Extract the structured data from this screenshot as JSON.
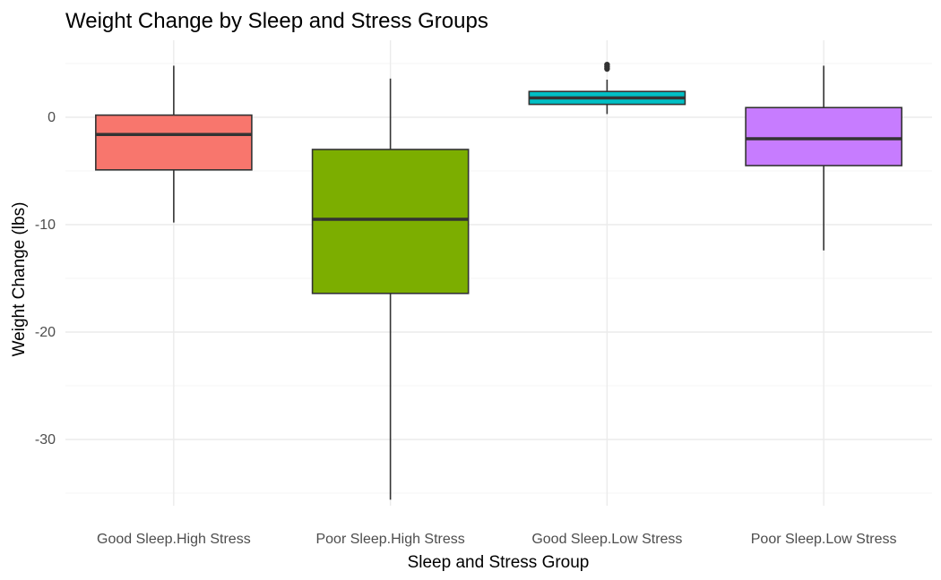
{
  "chart_data": {
    "type": "boxplot",
    "title": "Weight Change by Sleep and Stress Groups",
    "xlabel": "Sleep and Stress Group",
    "ylabel": "Weight Change (lbs)",
    "ylim": [
      -37,
      7
    ],
    "yticks": [
      0,
      -10,
      -20,
      -30
    ],
    "ytick_labels": [
      "0",
      "-10",
      "-20",
      "-30"
    ],
    "grid": true,
    "legend": "none",
    "categories": [
      "Good Sleep.High Stress",
      "Poor Sleep.High Stress",
      "Good Sleep.Low Stress",
      "Poor Sleep.Low Stress"
    ],
    "boxes": [
      {
        "category": "Good Sleep.High Stress",
        "whisker_low": -9.8,
        "q1": -4.9,
        "median": -1.6,
        "q3": 0.2,
        "whisker_high": 4.8,
        "outliers": [],
        "color": "#F8766D"
      },
      {
        "category": "Poor Sleep.High Stress",
        "whisker_low": -35.6,
        "q1": -16.4,
        "median": -9.5,
        "q3": -3.0,
        "whisker_high": 3.6,
        "outliers": [],
        "color": "#7CAE00"
      },
      {
        "category": "Good Sleep.Low Stress",
        "whisker_low": 0.3,
        "q1": 1.2,
        "median": 1.8,
        "q3": 2.4,
        "whisker_high": 3.5,
        "outliers": [
          4.5,
          4.7,
          4.9
        ],
        "color": "#00BFC4"
      },
      {
        "category": "Poor Sleep.Low Stress",
        "whisker_low": -12.4,
        "q1": -4.5,
        "median": -2.0,
        "q3": 0.9,
        "whisker_high": 4.8,
        "outliers": [],
        "color": "#C77CFF"
      }
    ]
  }
}
